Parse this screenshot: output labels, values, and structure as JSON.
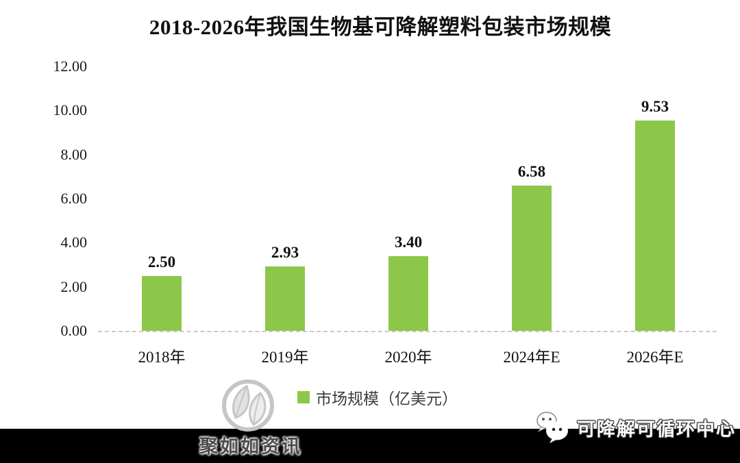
{
  "title": "2018-2026年我国生物基可降解塑料包装市场规模",
  "chart_data": {
    "type": "bar",
    "title": "2018-2026年我国生物基可降解塑料包装市场规模",
    "categories": [
      "2018年",
      "2019年",
      "2020年",
      "2024年E",
      "2026年E"
    ],
    "values": [
      2.5,
      2.93,
      3.4,
      6.58,
      9.53
    ],
    "value_labels": [
      "2.50",
      "2.93",
      "3.40",
      "6.58",
      "9.53"
    ],
    "series_name": "市场规模（亿美元）",
    "xlabel": "",
    "ylabel": "",
    "ylim": [
      0,
      12
    ],
    "ytick_interval": 2,
    "ytick_labels_bottom_up": [
      "0.00",
      "2.00",
      "4.00",
      "6.00",
      "8.00",
      "10.00",
      "12.00"
    ],
    "grid": false,
    "legend_position": "bottom",
    "bar_color": "#8dc74a"
  },
  "legend": {
    "label": "市场规模（亿美元）",
    "swatch_color": "#8dc74a"
  },
  "watermarks": {
    "left_text": "聚如如资讯",
    "right_text": "可降解可循环中心"
  },
  "colors": {
    "bar_green": "#8dc74a",
    "title_text": "#111111",
    "axis_text": "#1a1a1a",
    "baseline_gray": "#c9c9c9",
    "footer_band": "#000000",
    "logo_gray": "#c6c6c6"
  }
}
